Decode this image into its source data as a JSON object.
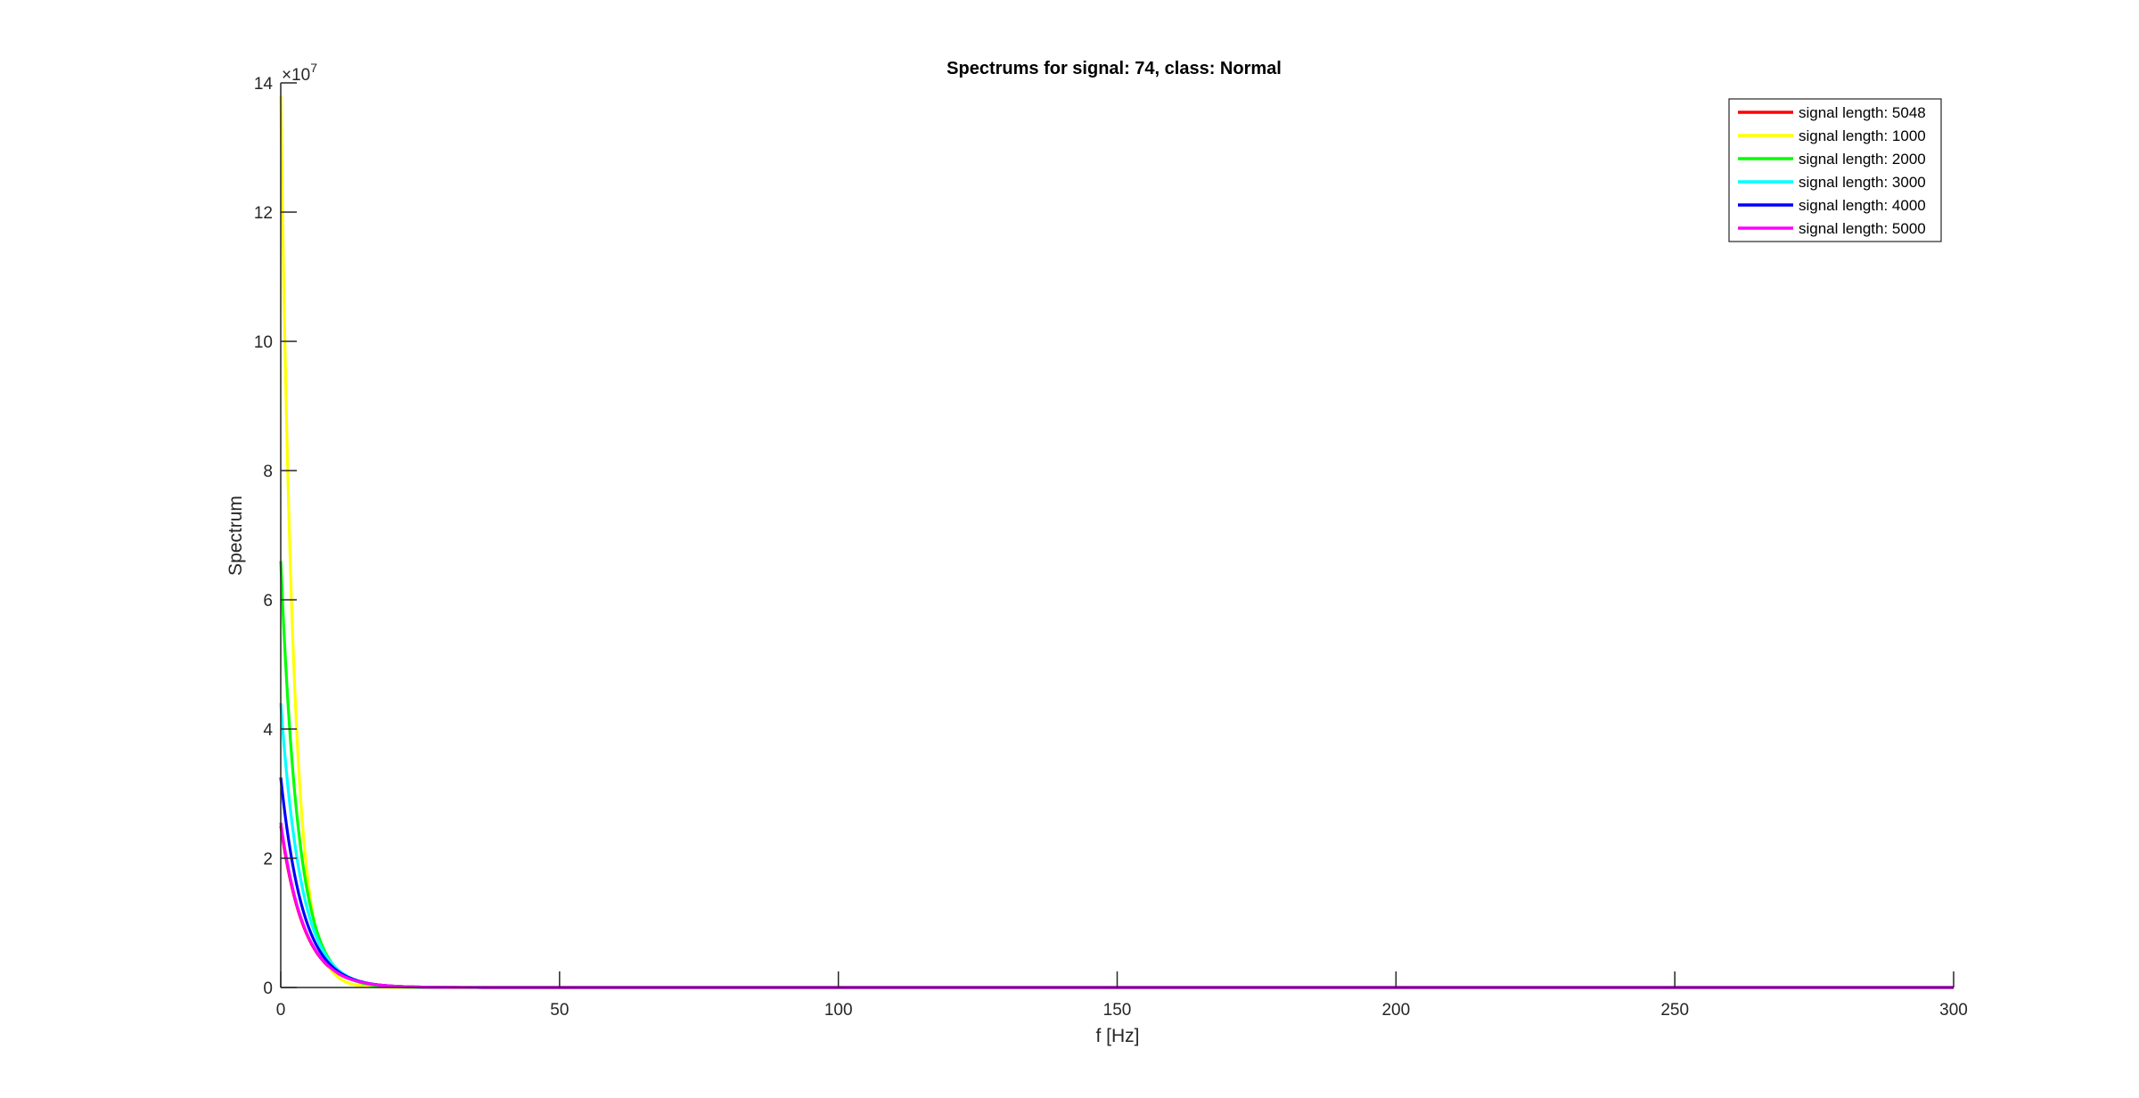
{
  "chart_data": {
    "type": "line",
    "title": "Spectrums for signal: 74, class: Normal",
    "xlabel": "f [Hz]",
    "ylabel": "Spectrum",
    "y_exponent_base": "×10",
    "y_exponent_power": "7",
    "xlim": [
      0,
      300
    ],
    "ylim": [
      0,
      14
    ],
    "xticks": [
      0,
      50,
      100,
      150,
      200,
      250,
      300
    ],
    "yticks": [
      0,
      2,
      4,
      6,
      8,
      10,
      12,
      14
    ],
    "grid": false,
    "legend_position": "top-right",
    "series": [
      {
        "name": "signal length: 5048",
        "color": "#ff0000",
        "peak": 2.5,
        "decay": 4.2
      },
      {
        "name": "signal length: 1000",
        "color": "#ffff00",
        "peak": 13.8,
        "decay": 2.3
      },
      {
        "name": "signal length: 2000",
        "color": "#00ff00",
        "peak": 6.6,
        "decay": 3.2
      },
      {
        "name": "signal length: 3000",
        "color": "#00ffff",
        "peak": 4.4,
        "decay": 3.7
      },
      {
        "name": "signal length: 4000",
        "color": "#0000ff",
        "peak": 3.25,
        "decay": 4.0
      },
      {
        "name": "signal length: 5000",
        "color": "#ff00ff",
        "peak": 2.55,
        "decay": 4.2
      }
    ]
  }
}
